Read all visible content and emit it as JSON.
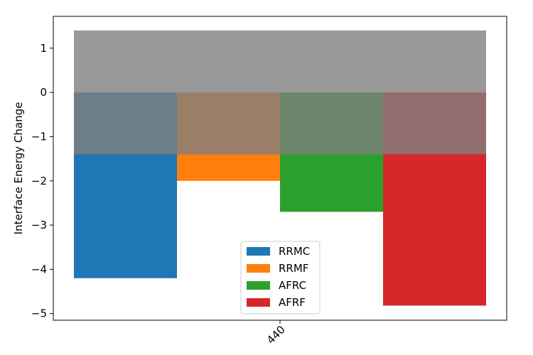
{
  "chart_data": {
    "type": "bar",
    "categories": [
      "440"
    ],
    "series": [
      {
        "name": "RRMC",
        "values": [
          -4.2
        ],
        "color": "#1f77b4"
      },
      {
        "name": "RRMF",
        "values": [
          -2.0
        ],
        "color": "#ff7f0e"
      },
      {
        "name": "AFRC",
        "values": [
          -2.7
        ],
        "color": "#2ca02c"
      },
      {
        "name": "AFRF",
        "values": [
          -4.82
        ],
        "color": "#d62728"
      }
    ],
    "shaded_band": {
      "y_from": -1.4,
      "y_to": 1.4,
      "color": "#808080",
      "opacity": 0.8
    },
    "ylabel": "Interface Energy Change",
    "xlabel": "",
    "ylim": [
      -5.15,
      1.72
    ],
    "yticks": [
      1,
      0,
      -1,
      -2,
      -3,
      -4,
      -5
    ],
    "ytick_labels": [
      "1",
      "0",
      "−1",
      "−2",
      "−3",
      "−4",
      "−5"
    ],
    "xtick_rotation": 45,
    "legend_position": "lower center",
    "grid": false
  }
}
